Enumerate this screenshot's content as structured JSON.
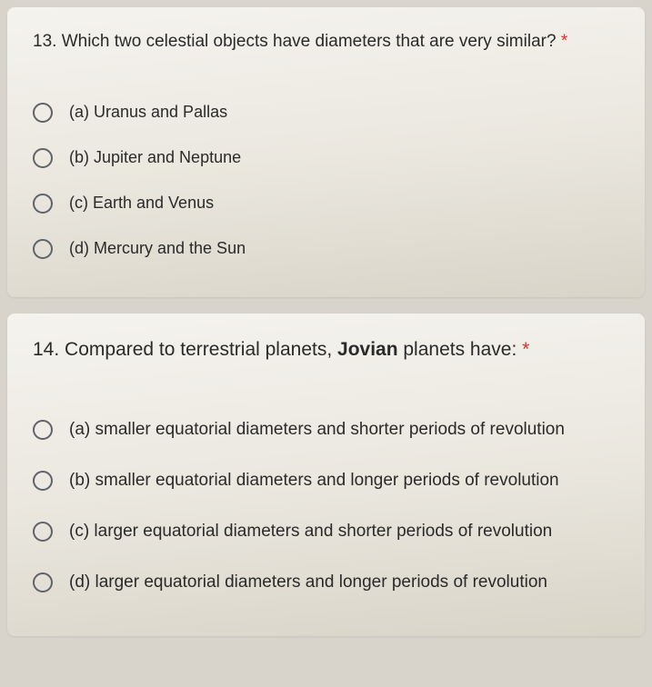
{
  "colors": {
    "background": "#d8d4cc",
    "card_light": "#f5f3ee",
    "card_dark": "#d8d4c8",
    "text": "#2a2a2a",
    "radio_border": "#5f6368",
    "required": "#d93025"
  },
  "typography": {
    "font_family": "Arial, Helvetica, sans-serif",
    "question_fontsize": 19,
    "option_fontsize": 18
  },
  "questions": [
    {
      "number": "13.",
      "text": "Which two celestial objects have diameters that are very similar?",
      "required_marker": "*",
      "options": [
        "(a) Uranus and Pallas",
        "(b) Jupiter and Neptune",
        "(c) Earth and Venus",
        "(d) Mercury and the Sun"
      ]
    },
    {
      "number": "14.",
      "text_prefix": "Compared to terrestrial planets, ",
      "text_bold": "Jovian",
      "text_suffix": " planets have:",
      "required_marker": "*",
      "options": [
        "(a) smaller equatorial diameters and shorter periods of revolution",
        "(b) smaller equatorial diameters and longer periods of revolution",
        "(c) larger equatorial diameters and shorter periods of revolution",
        "(d) larger equatorial diameters and longer periods of revolution"
      ]
    }
  ]
}
